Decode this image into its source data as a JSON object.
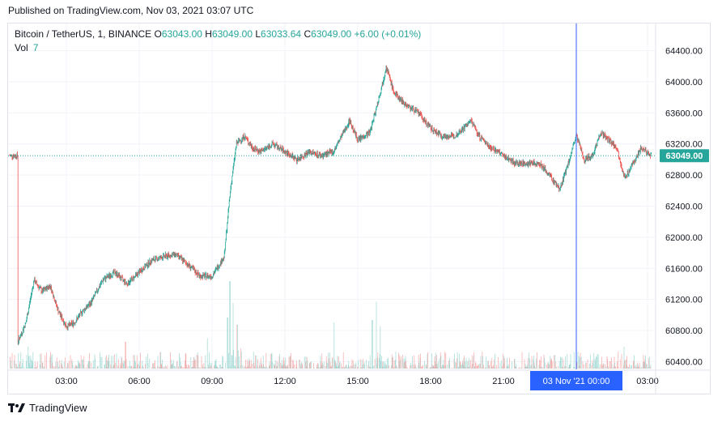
{
  "published": "Published on TradingView.com, Nov 03, 2021 03:07 UTC",
  "legend": {
    "symbol": "Bitcoin / TetherUS, 1, BINANCE",
    "o_label": "O",
    "o": "63043.00",
    "h_label": "H",
    "h": "63049.00",
    "l_label": "L",
    "l": "63033.64",
    "c_label": "C",
    "c": "63049.00",
    "change": "+6.00 (+0.01%)",
    "vol_label": "Vol",
    "vol": "7"
  },
  "brand": "TradingView",
  "colors": {
    "up": "#26a69a",
    "down": "#ef5350",
    "crosshair": "#2962ff",
    "grid": "#f0f3fa",
    "price_tag": "#26a69a"
  },
  "chart_data": {
    "type": "candlestick",
    "symbol": "Bitcoin / TetherUS",
    "interval": "1",
    "exchange": "BINANCE",
    "y_ticks": [
      "64400.00",
      "64000.00",
      "63600.00",
      "63200.00",
      "62800.00",
      "62400.00",
      "62000.00",
      "61600.00",
      "61200.00",
      "60800.00",
      "60400.00"
    ],
    "ylim": [
      60300,
      64750
    ],
    "x_ticks": [
      "03:00",
      "06:00",
      "09:00",
      "12:00",
      "15:00",
      "18:00",
      "21:00",
      "03:00"
    ],
    "crosshair_label": "03 Nov '21   00:00",
    "last_price": "63049.00",
    "close_path": [
      {
        "t": "01:00",
        "p": 60650
      },
      {
        "t": "01:20",
        "p": 60900
      },
      {
        "t": "01:40",
        "p": 61450
      },
      {
        "t": "02:00",
        "p": 61300
      },
      {
        "t": "02:20",
        "p": 61380
      },
      {
        "t": "02:40",
        "p": 61050
      },
      {
        "t": "03:00",
        "p": 60850
      },
      {
        "t": "03:20",
        "p": 60900
      },
      {
        "t": "03:40",
        "p": 61050
      },
      {
        "t": "04:00",
        "p": 61150
      },
      {
        "t": "04:30",
        "p": 61450
      },
      {
        "t": "05:00",
        "p": 61550
      },
      {
        "t": "05:30",
        "p": 61400
      },
      {
        "t": "06:00",
        "p": 61550
      },
      {
        "t": "06:30",
        "p": 61700
      },
      {
        "t": "07:00",
        "p": 61750
      },
      {
        "t": "07:30",
        "p": 61780
      },
      {
        "t": "08:00",
        "p": 61650
      },
      {
        "t": "08:30",
        "p": 61500
      },
      {
        "t": "09:00",
        "p": 61500
      },
      {
        "t": "09:30",
        "p": 61750
      },
      {
        "t": "09:45",
        "p": 62600
      },
      {
        "t": "10:00",
        "p": 63200
      },
      {
        "t": "10:20",
        "p": 63300
      },
      {
        "t": "10:40",
        "p": 63150
      },
      {
        "t": "11:00",
        "p": 63100
      },
      {
        "t": "11:30",
        "p": 63200
      },
      {
        "t": "12:00",
        "p": 63100
      },
      {
        "t": "12:30",
        "p": 63000
      },
      {
        "t": "13:00",
        "p": 63100
      },
      {
        "t": "13:30",
        "p": 63050
      },
      {
        "t": "14:00",
        "p": 63100
      },
      {
        "t": "14:30",
        "p": 63400
      },
      {
        "t": "14:40",
        "p": 63500
      },
      {
        "t": "15:00",
        "p": 63250
      },
      {
        "t": "15:30",
        "p": 63350
      },
      {
        "t": "16:00",
        "p": 63950
      },
      {
        "t": "16:10",
        "p": 64200
      },
      {
        "t": "16:30",
        "p": 63850
      },
      {
        "t": "17:00",
        "p": 63700
      },
      {
        "t": "17:30",
        "p": 63600
      },
      {
        "t": "18:00",
        "p": 63400
      },
      {
        "t": "18:30",
        "p": 63300
      },
      {
        "t": "19:00",
        "p": 63300
      },
      {
        "t": "19:30",
        "p": 63450
      },
      {
        "t": "19:40",
        "p": 63500
      },
      {
        "t": "20:00",
        "p": 63300
      },
      {
        "t": "20:30",
        "p": 63150
      },
      {
        "t": "21:00",
        "p": 63050
      },
      {
        "t": "21:30",
        "p": 62950
      },
      {
        "t": "22:00",
        "p": 62950
      },
      {
        "t": "22:30",
        "p": 62950
      },
      {
        "t": "23:00",
        "p": 62750
      },
      {
        "t": "23:20",
        "p": 62620
      },
      {
        "t": "23:40",
        "p": 62950
      },
      {
        "t": "00:00",
        "p": 63300
      },
      {
        "t": "00:20",
        "p": 63000
      },
      {
        "t": "00:40",
        "p": 63050
      },
      {
        "t": "01:00",
        "p": 63350
      },
      {
        "t": "01:20",
        "p": 63250
      },
      {
        "t": "01:40",
        "p": 63150
      },
      {
        "t": "02:00",
        "p": 62750
      },
      {
        "t": "02:20",
        "p": 62950
      },
      {
        "t": "02:40",
        "p": 63150
      },
      {
        "t": "03:07",
        "p": 63049
      }
    ]
  }
}
